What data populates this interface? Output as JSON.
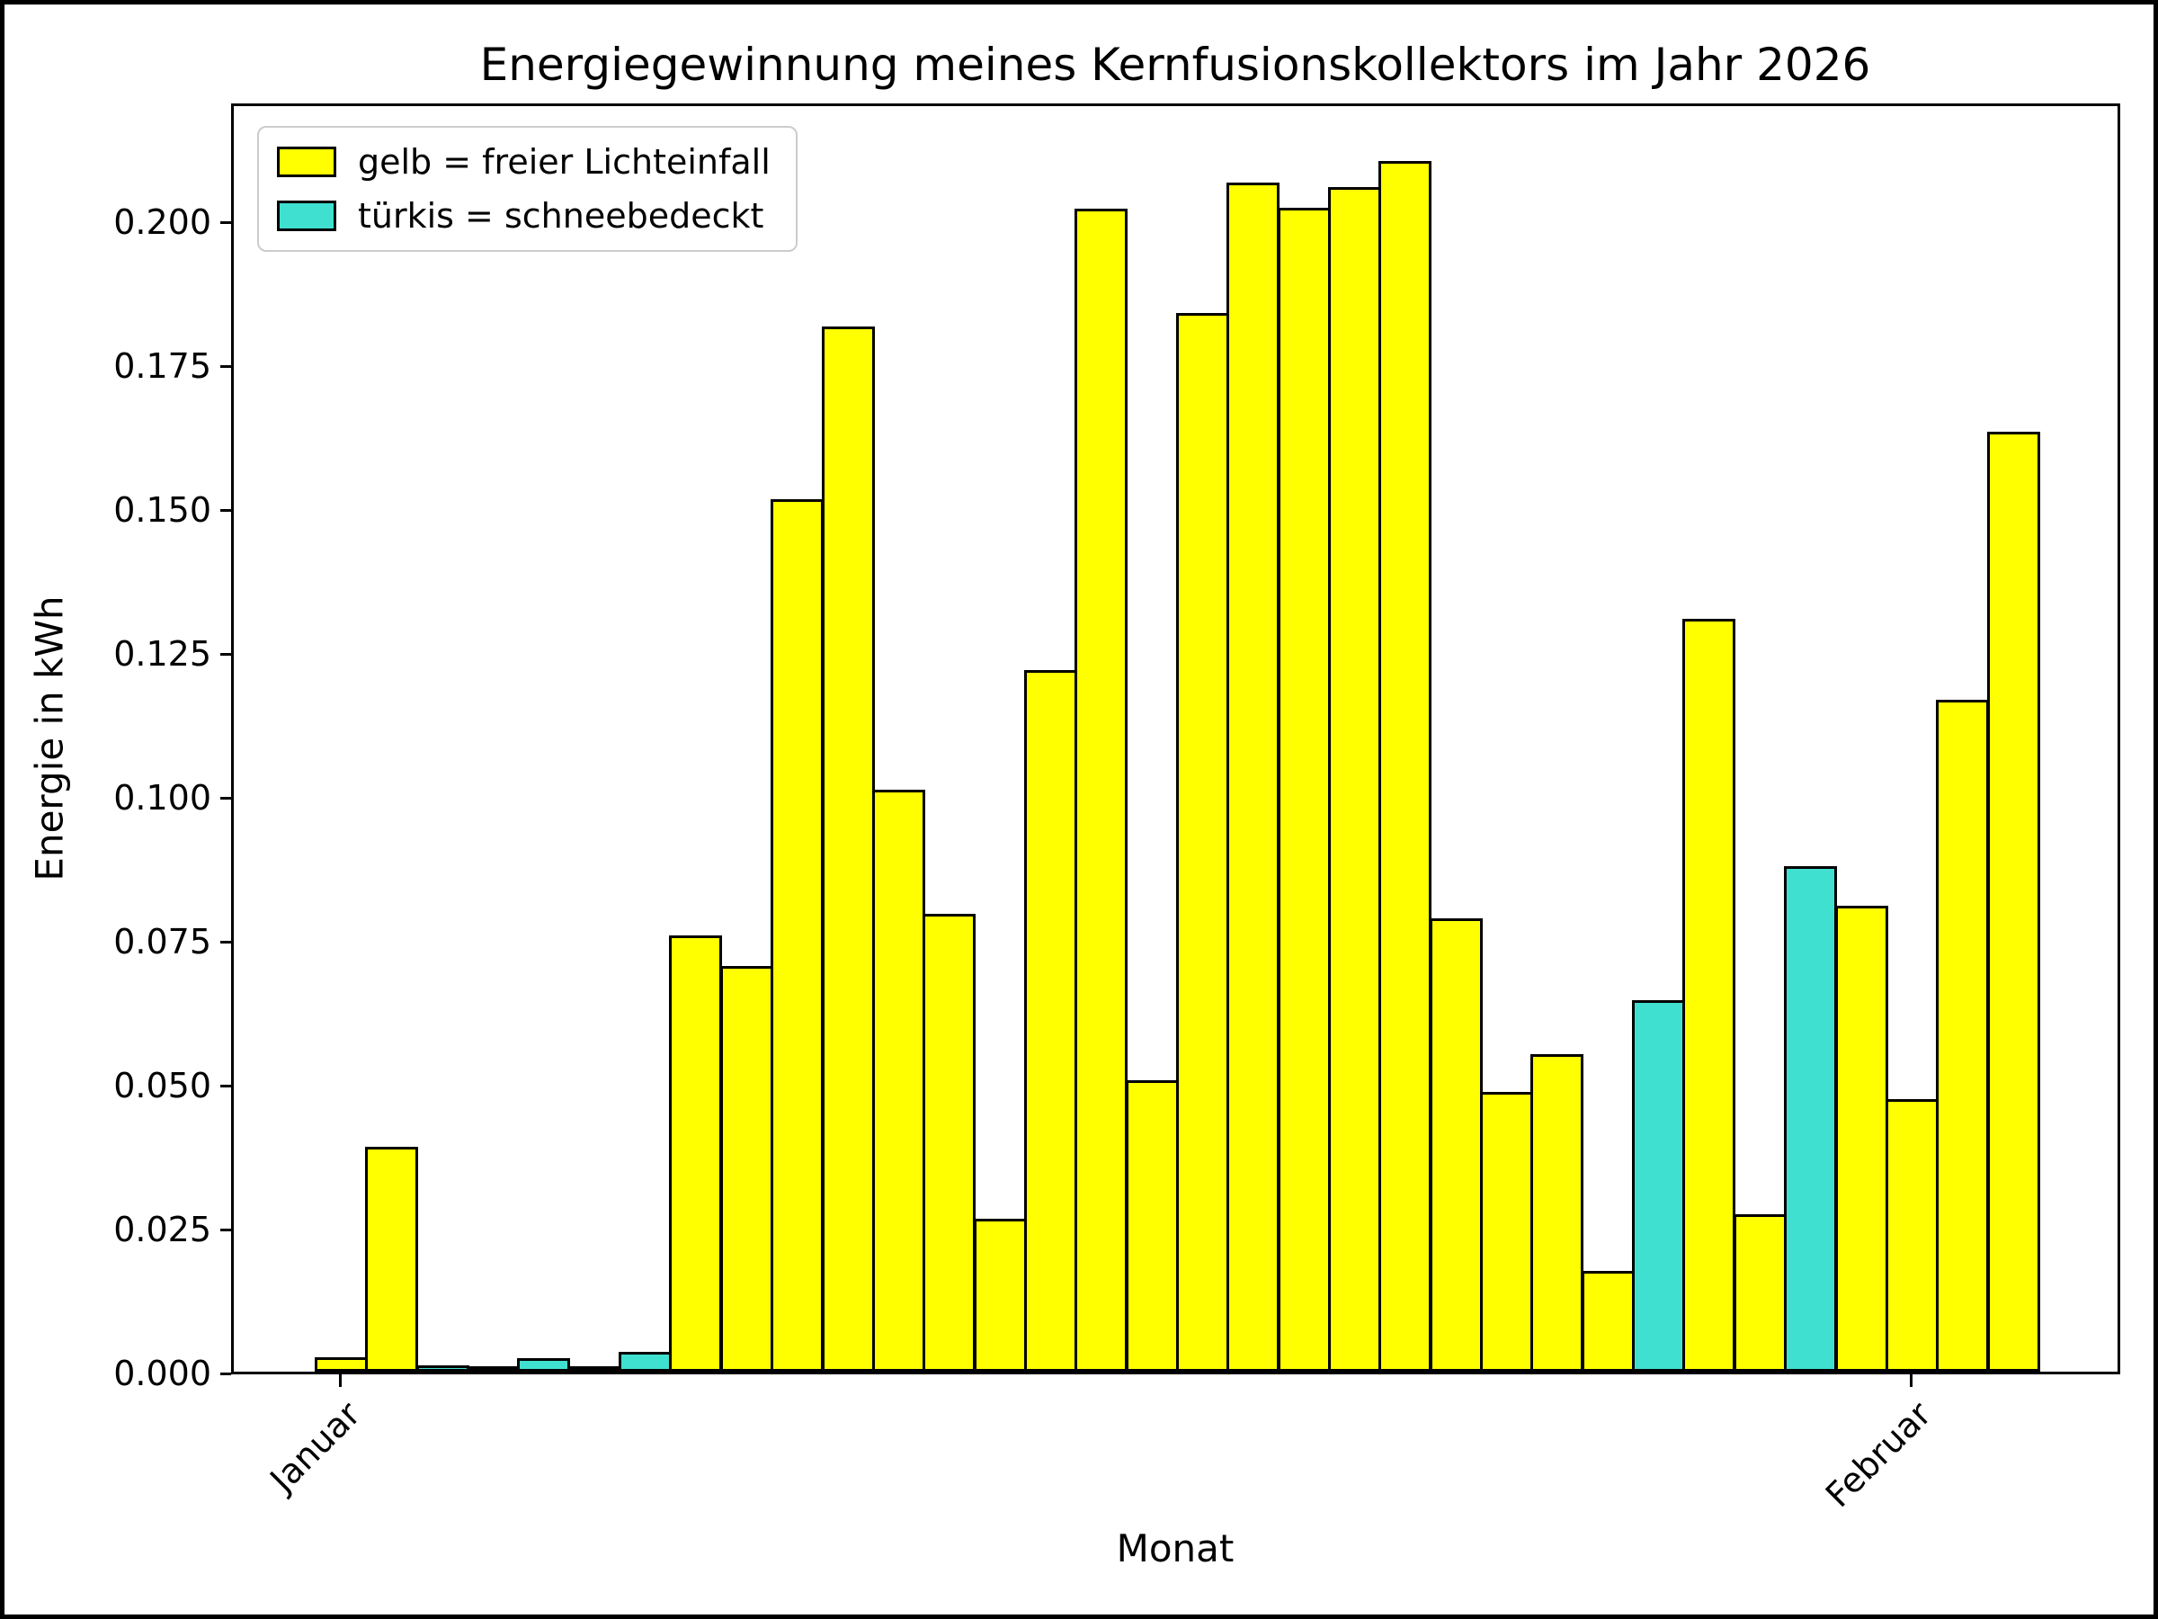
{
  "figure_title": "Energiegewinnung meines Kernfusionskollektors im Jahr 2026",
  "chart_data": {
    "type": "bar",
    "title": "Energiegewinnung meines Kernfusionskollektors im Jahr 2026",
    "xlabel": "Monat",
    "ylabel": "Energie in kWh",
    "ylim": [
      0,
      0.2208
    ],
    "grid": false,
    "yticks": [
      0.0,
      0.025,
      0.05,
      0.075,
      0.1,
      0.125,
      0.15,
      0.175,
      0.2
    ],
    "ytick_labels": [
      "0.000",
      "0.025",
      "0.050",
      "0.075",
      "0.100",
      "0.125",
      "0.150",
      "0.175",
      "0.200"
    ],
    "xticks": [
      {
        "label": "Januar",
        "bar_index": 1
      },
      {
        "label": "Februar",
        "bar_index": 32
      }
    ],
    "n_bars": 34,
    "bars": {
      "values": [
        0.0025,
        0.039,
        0.0011,
        0.0005,
        0.0024,
        0.0006,
        0.0034,
        0.0758,
        0.0704,
        0.1516,
        0.1816,
        0.1011,
        0.0796,
        0.0266,
        0.1219,
        0.202,
        0.0507,
        0.1839,
        0.2065,
        0.2022,
        0.2058,
        0.2103,
        0.0787,
        0.0486,
        0.0552,
        0.0175,
        0.0645,
        0.1308,
        0.0273,
        0.0878,
        0.081,
        0.0474,
        0.1167,
        0.1633
      ],
      "snow_covered": [
        false,
        false,
        true,
        true,
        true,
        true,
        true,
        false,
        false,
        false,
        false,
        false,
        false,
        false,
        false,
        false,
        false,
        false,
        false,
        false,
        false,
        false,
        false,
        false,
        false,
        false,
        true,
        false,
        false,
        true,
        false,
        false,
        false,
        false
      ]
    },
    "legend": {
      "position": "upper left",
      "entries": [
        {
          "label": "gelb = freier Lichteinfall",
          "color": "#ffff00"
        },
        {
          "label": "türkis = schneebedeckt",
          "color": "#40e0d0"
        }
      ]
    },
    "colors": {
      "free_light": "#ffff00",
      "snow": "#40e0d0",
      "edge": "#000000",
      "background": "#ffffff"
    }
  }
}
